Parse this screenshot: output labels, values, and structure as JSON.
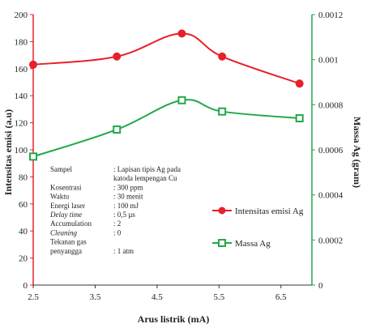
{
  "chart_data": {
    "type": "line",
    "xlabel": "Arus listrik (mA)",
    "ylabel_left": "Intensitas emisi (a.u)",
    "ylabel_right": "Massa Ag (gram)",
    "xlim": [
      2.5,
      7.0
    ],
    "x_ticks": [
      "2.5",
      "3.5",
      "4.5",
      "5.5",
      "6.5"
    ],
    "ylim_left": [
      0,
      200
    ],
    "y_ticks_left": [
      "0",
      "20",
      "40",
      "60",
      "80",
      "100",
      "120",
      "140",
      "160",
      "180",
      "200"
    ],
    "ylim_right": [
      0,
      0.0012
    ],
    "y_ticks_right": [
      "0",
      "0.0002",
      "0.0004",
      "0.0006",
      "0.0008",
      "0.001",
      "0.0012"
    ],
    "series": [
      {
        "name": "Intensitas emisi Ag",
        "axis": "left",
        "color": "#e8202a",
        "marker": "circle",
        "x": [
          2.5,
          3.85,
          4.9,
          5.55,
          6.8
        ],
        "y": [
          163,
          169,
          186,
          169,
          149
        ]
      },
      {
        "name": "Massa Ag",
        "axis": "right",
        "color": "#22a84a",
        "marker": "square",
        "x": [
          2.5,
          3.85,
          4.9,
          5.55,
          6.8
        ],
        "y": [
          0.00057,
          0.00069,
          0.00082,
          0.00077,
          0.00074
        ]
      }
    ],
    "legend_placement": "right-inside",
    "info_box": [
      [
        "Sampel",
        ": Lapisan tipis Ag pada"
      ],
      [
        "",
        "  katoda lempengan Cu"
      ],
      [
        "Kosentrasi",
        ": 300 ppm"
      ],
      [
        "Waktu",
        ": 30 menit"
      ],
      [
        "Energi laser",
        ": 100 mJ"
      ],
      [
        "Delay time",
        ": 0,5 µs"
      ],
      [
        "Accumulation",
        ": 2"
      ],
      [
        "Cleaning",
        ": 0"
      ],
      [
        "Tekanan gas",
        ""
      ],
      [
        "penyangga",
        ": 1 atm"
      ]
    ]
  }
}
